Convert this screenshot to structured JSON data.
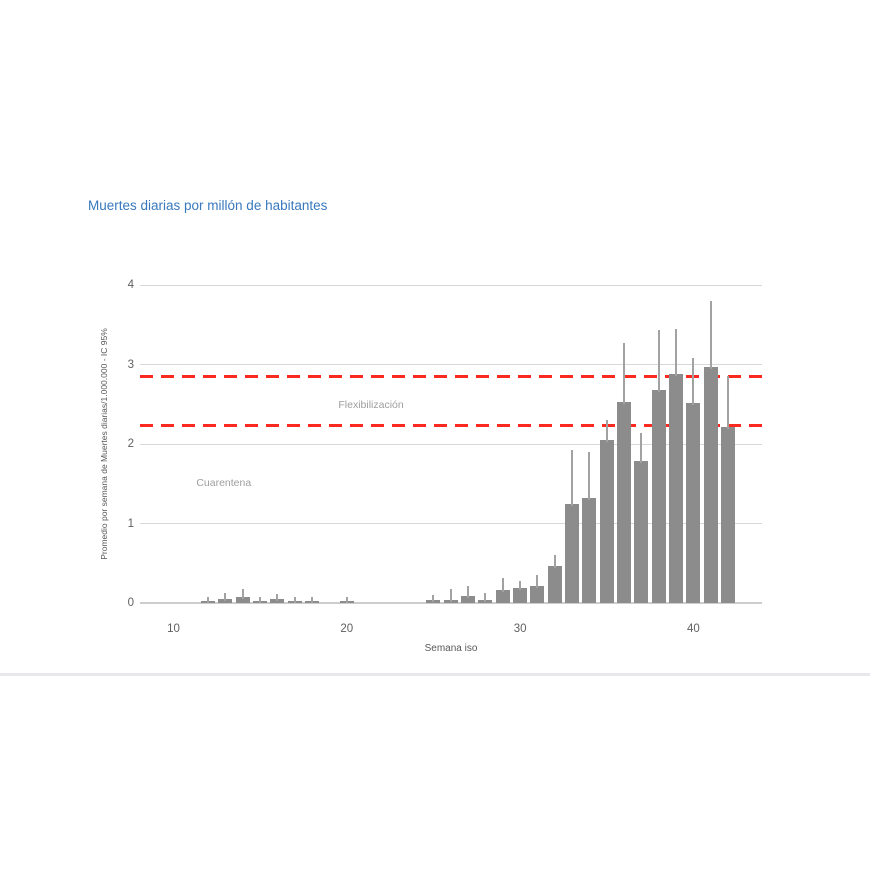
{
  "chart_data": {
    "type": "bar",
    "title": "Muertes diarias por millón de habitantes",
    "xlabel": "Semana iso",
    "ylabel": "Promedio por semana de Muertes diarias/1.000.000 - IC 95%",
    "x": [
      12,
      13,
      14,
      15,
      16,
      17,
      18,
      20,
      25,
      26,
      27,
      28,
      29,
      30,
      31,
      32,
      33,
      34,
      35,
      36,
      37,
      38,
      39,
      40,
      41,
      42
    ],
    "values": [
      0.03,
      0.05,
      0.07,
      0.03,
      0.05,
      0.03,
      0.03,
      0.03,
      0.04,
      0.04,
      0.09,
      0.04,
      0.16,
      0.19,
      0.21,
      0.46,
      1.25,
      1.32,
      2.05,
      2.53,
      1.79,
      2.68,
      2.88,
      2.52,
      2.97,
      2.22
    ],
    "ci_upper": [
      0.08,
      0.12,
      0.17,
      0.08,
      0.11,
      0.08,
      0.07,
      0.07,
      0.1,
      0.18,
      0.21,
      0.12,
      0.31,
      0.28,
      0.35,
      0.61,
      1.92,
      1.9,
      2.3,
      3.27,
      2.14,
      3.43,
      3.45,
      3.08,
      3.8,
      2.85
    ],
    "xticks": [
      10,
      20,
      30,
      40
    ],
    "yticks": [
      0,
      1,
      2,
      3,
      4
    ],
    "xlim": [
      8.1,
      43.9
    ],
    "ylim": [
      0,
      4
    ],
    "grid": "horizontal",
    "legend": "none",
    "title_color": "#3879bd",
    "bar_color": "#8c8c8c",
    "error_bar_color": "#a2a2a2",
    "reference_line_color": "#fa2a20",
    "reference_lines": [
      {
        "value": 2.85,
        "style": "dashed"
      },
      {
        "value": 2.23,
        "style": "dashed"
      }
    ],
    "annotations": [
      {
        "text": "Flexibilización",
        "x": 21.4,
        "y": 2.49
      },
      {
        "text": "Cuarentena",
        "x": 12.9,
        "y": 1.51
      }
    ]
  }
}
